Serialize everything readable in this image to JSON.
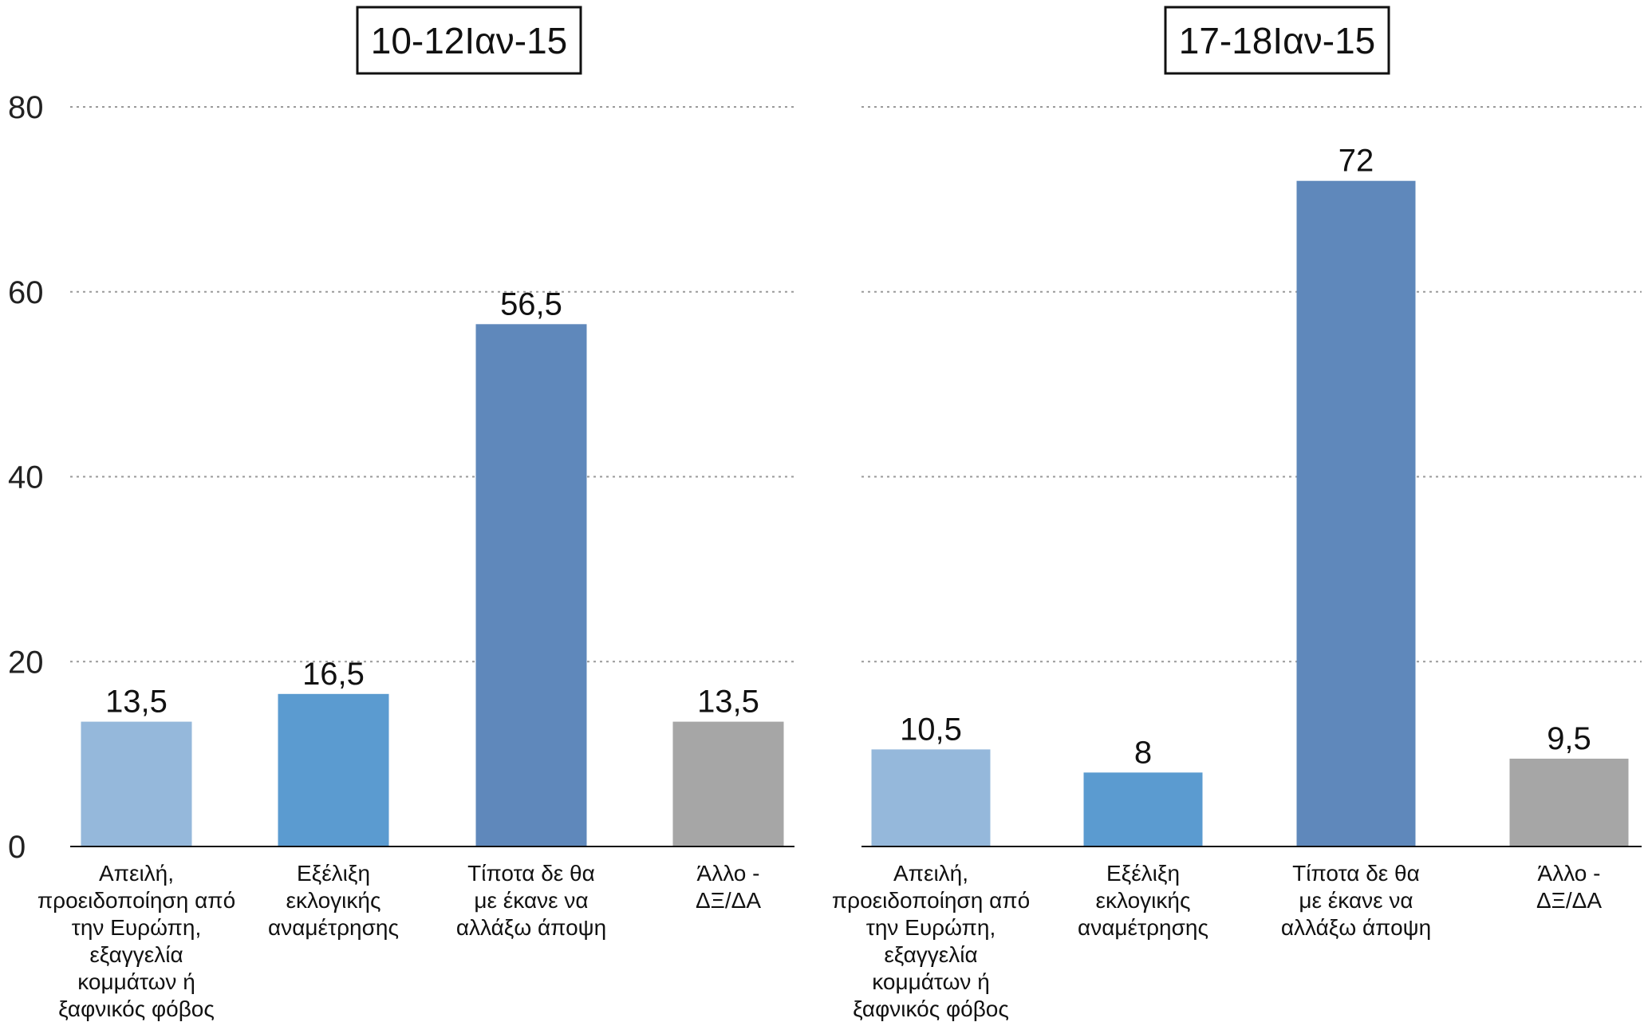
{
  "chart_data": [
    {
      "type": "bar",
      "title": "10-12Ιαν-15",
      "categories": [
        "Απειλή, προειδοποίηση από την Ευρώπη, εξαγγελία κομμάτων ή ξαφνικός φόβος",
        "Εξέλιξη εκλογικής αναμέτρησης",
        "Τίποτα δε θα με έκανε να αλλάξω άποψη",
        "Άλλο - ΔΞ/ΔΑ"
      ],
      "category_lines": [
        [
          "Απειλή,",
          "προειδοποίηση από",
          "την Ευρώπη,",
          "εξαγγελία",
          "κομμάτων ή",
          "ξαφνικός φόβος"
        ],
        [
          "Εξέλιξη",
          "εκλογικής",
          "αναμέτρησης"
        ],
        [
          "Τίποτα δε θα",
          "με έκανε να",
          "αλλάξω άποψη"
        ],
        [
          "Άλλο -",
          "ΔΞ/ΔΑ"
        ]
      ],
      "values": [
        13.5,
        16.5,
        56.5,
        13.5
      ],
      "value_labels": [
        "13,5",
        "16,5",
        "56,5",
        "13,5"
      ],
      "colors": [
        "#95b8db",
        "#5b9bd0",
        "#5f88bb",
        "#a6a6a6"
      ],
      "ylim": [
        0,
        80
      ],
      "yticks": [
        0,
        20,
        40,
        60,
        80
      ],
      "grid": true,
      "xlabel": "",
      "ylabel": ""
    },
    {
      "type": "bar",
      "title": "17-18Ιαν-15",
      "categories": [
        "Απειλή, προειδοποίηση από την Ευρώπη, εξαγγελία κομμάτων ή ξαφνικός φόβος",
        "Εξέλιξη εκλογικής αναμέτρησης",
        "Τίποτα δε θα με έκανε να αλλάξω άποψη",
        "Άλλο - ΔΞ/ΔΑ"
      ],
      "category_lines": [
        [
          "Απειλή,",
          "προειδοποίηση από",
          "την Ευρώπη,",
          "εξαγγελία",
          "κομμάτων ή",
          "ξαφνικός φόβος"
        ],
        [
          "Εξέλιξη",
          "εκλογικής",
          "αναμέτρησης"
        ],
        [
          "Τίποτα δε θα",
          "με έκανε να",
          "αλλάξω άποψη"
        ],
        [
          "Άλλο -",
          "ΔΞ/ΔΑ"
        ]
      ],
      "values": [
        10.5,
        8,
        72,
        9.5
      ],
      "value_labels": [
        "10,5",
        "8",
        "72",
        "9,5"
      ],
      "colors": [
        "#95b8db",
        "#5b9bd0",
        "#5f88bb",
        "#a6a6a6"
      ],
      "ylim": [
        0,
        80
      ],
      "yticks": [
        0,
        20,
        40,
        60,
        80
      ],
      "grid": true,
      "xlabel": "",
      "ylabel": ""
    }
  ]
}
